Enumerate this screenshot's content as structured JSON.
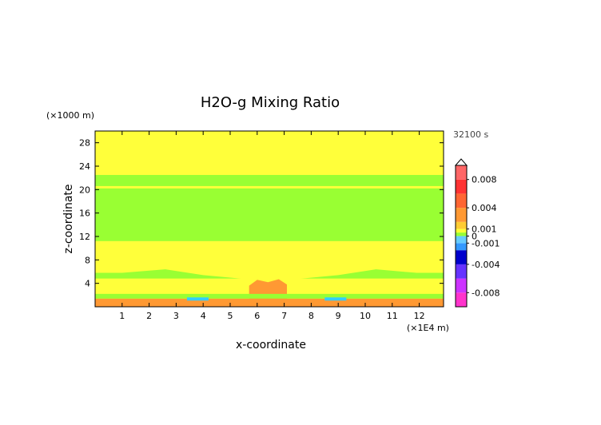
{
  "chart_data": {
    "type": "heatmap",
    "title": "H2O-g Mixing Ratio",
    "xlabel": "x-coordinate",
    "ylabel": "z-coordinate",
    "x_unit": "(×1E4 m)",
    "y_unit": "(×1000 m)",
    "time_label": "32100 s",
    "xlim": [
      0,
      12.9
    ],
    "ylim": [
      0,
      30
    ],
    "x_ticks": [
      "1",
      "2",
      "3",
      "4",
      "5",
      "6",
      "7",
      "8",
      "9",
      "10",
      "11",
      "12"
    ],
    "y_ticks": [
      "4",
      "8",
      "12",
      "16",
      "20",
      "24",
      "28"
    ],
    "grid": false,
    "legend": "colorbar-right",
    "colorbar": {
      "range": [
        -0.01,
        0.01
      ],
      "labels": [
        {
          "value": 0.008,
          "text": "0.008"
        },
        {
          "value": 0.004,
          "text": "0.004"
        },
        {
          "value": 0.001,
          "text": "0.001"
        },
        {
          "value": 0,
          "text": "0"
        },
        {
          "value": -0.001,
          "text": "-0.001"
        },
        {
          "value": -0.004,
          "text": "-0.004"
        },
        {
          "value": -0.008,
          "text": "-0.008"
        }
      ]
    },
    "colors": {
      "background": "#ffff3a",
      "near_zero": "#99ff33",
      "positive_small": "#ff9933",
      "negative_small": "#33ccff"
    }
  }
}
